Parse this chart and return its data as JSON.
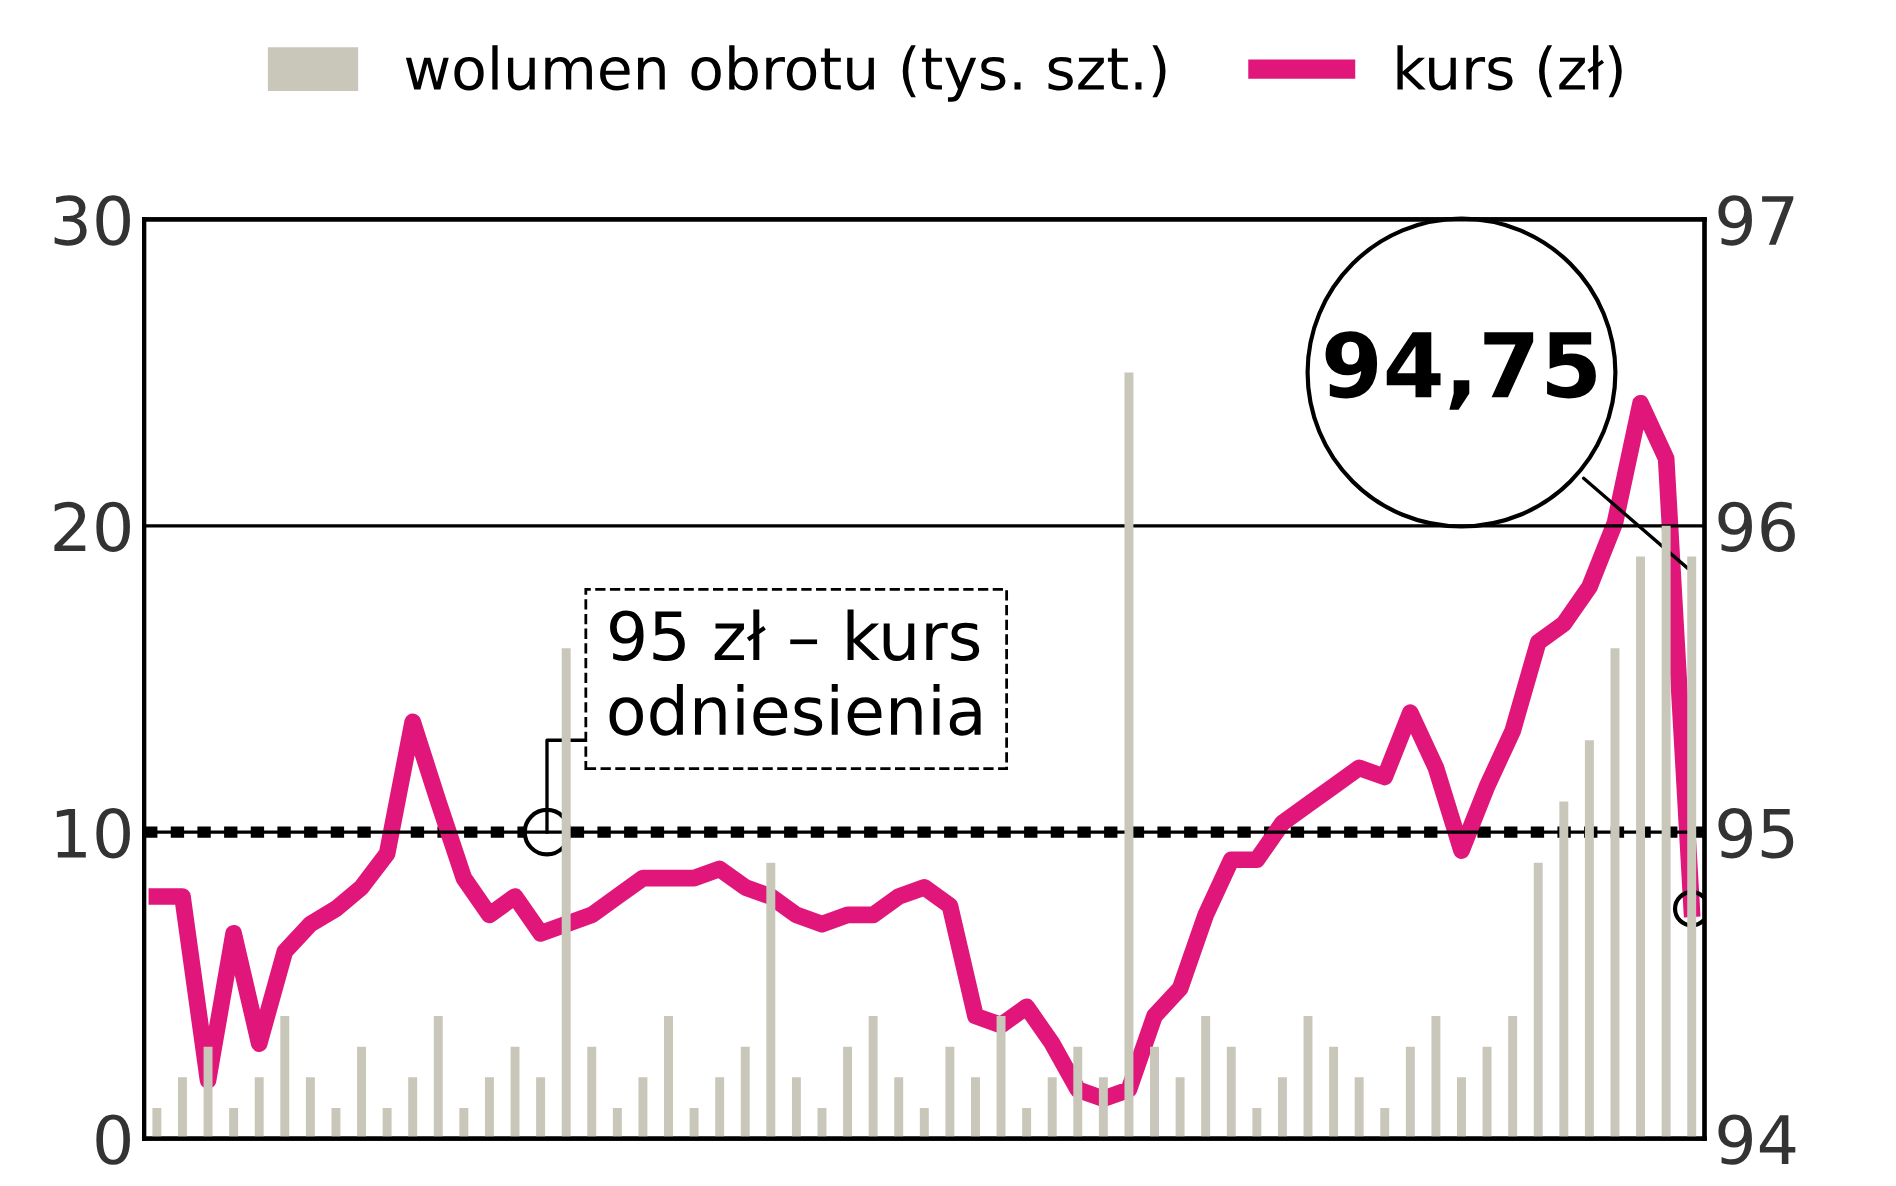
{
  "chart_data": {
    "type": "bar",
    "categories": [
      null,
      null,
      null,
      null,
      null,
      null,
      null,
      null,
      null,
      null,
      null,
      null,
      null,
      null,
      null,
      null,
      null,
      null,
      null,
      null,
      null,
      null,
      null,
      null,
      null,
      null,
      null,
      null,
      null,
      null,
      null,
      null,
      null,
      null,
      null,
      null,
      null,
      null,
      null,
      null,
      null,
      null,
      null,
      null,
      null,
      null,
      null,
      null,
      null,
      null,
      null,
      null,
      null,
      null,
      null,
      null,
      null,
      null,
      null,
      null,
      null
    ],
    "series": [
      {
        "name": "wolumen obrotu (tys. szt.)",
        "color": "#c9c7b9",
        "values": [
          1,
          2,
          3,
          1,
          2,
          4,
          2,
          1,
          3,
          1,
          2,
          4,
          1,
          2,
          3,
          2,
          16,
          3,
          1,
          2,
          4,
          1,
          2,
          3,
          9,
          2,
          1,
          3,
          4,
          2,
          1,
          3,
          2,
          4,
          1,
          2,
          3,
          2,
          25,
          3,
          2,
          4,
          3,
          1,
          2,
          4,
          3,
          2,
          1,
          3,
          4,
          2,
          3,
          4,
          9,
          11,
          13,
          16,
          19,
          20,
          19
        ]
      },
      {
        "name": "kurs (zł)",
        "type": "line",
        "axis": "y2",
        "color": "#e0167a",
        "values": [
          94.79,
          94.79,
          94.19,
          94.67,
          94.31,
          94.61,
          94.7,
          94.75,
          94.82,
          94.93,
          95.36,
          95.1,
          94.85,
          94.73,
          94.79,
          94.67,
          94.7,
          94.73,
          94.79,
          94.85,
          94.85,
          94.85,
          94.88,
          94.82,
          94.79,
          94.73,
          94.7,
          94.73,
          94.73,
          94.79,
          94.82,
          94.76,
          94.4,
          94.37,
          94.43,
          94.31,
          94.16,
          94.13,
          94.16,
          94.4,
          94.49,
          94.73,
          94.91,
          94.91,
          95.03,
          95.09,
          95.15,
          95.21,
          95.18,
          95.39,
          95.21,
          94.94,
          95.15,
          95.33,
          95.62,
          95.68,
          95.8,
          96.01,
          96.4,
          96.22,
          94.75
        ]
      }
    ],
    "ylim": [
      0,
      30
    ],
    "yticks": [
      0,
      10,
      20,
      30
    ],
    "y2lim": [
      94,
      97
    ],
    "y2ticks": [
      94,
      95,
      96,
      97
    ],
    "ref_lines": [
      {
        "axis": "y2",
        "value": 95,
        "label": "95 zł – kurs\nodniesienia",
        "color": "#000000",
        "line_style": "dotted"
      }
    ],
    "annotations": [
      "94,75"
    ],
    "grid": "y",
    "legend": "top"
  }
}
